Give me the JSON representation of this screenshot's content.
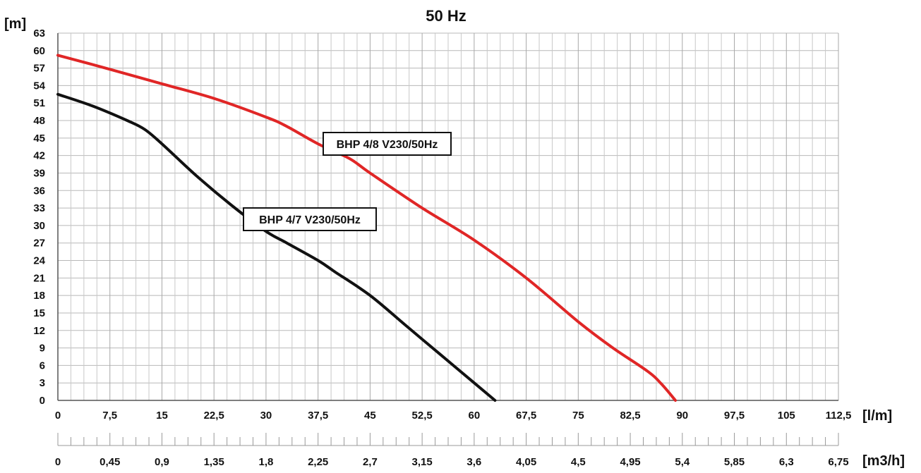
{
  "chart_data": {
    "type": "line",
    "title": "50 Hz",
    "ylabel": "[m]",
    "xlabel": "[l/m]",
    "x2label": "[m3/h]",
    "ylim": [
      0,
      63
    ],
    "xlim": [
      0,
      112.5
    ],
    "x2lim": [
      0,
      6.75
    ],
    "grid": true,
    "y_ticks": [
      "0",
      "3",
      "6",
      "9",
      "12",
      "15",
      "18",
      "21",
      "24",
      "27",
      "30",
      "33",
      "36",
      "39",
      "42",
      "45",
      "48",
      "51",
      "54",
      "57",
      "60",
      "63"
    ],
    "x_ticks": [
      "0",
      "7,5",
      "15",
      "22,5",
      "30",
      "37,5",
      "45",
      "52,5",
      "60",
      "67,5",
      "75",
      "82,5",
      "90",
      "97,5",
      "105",
      "112,5"
    ],
    "x2_ticks": [
      "0",
      "0,45",
      "0,9",
      "1,35",
      "1,8",
      "2,25",
      "2,7",
      "3,15",
      "3,6",
      "4,05",
      "4,5",
      "4,95",
      "5,4",
      "5,85",
      "6,3",
      "6,75"
    ],
    "series": [
      {
        "name": "BHP 4/7 V230/50Hz",
        "color": "#111111",
        "x": [
          0,
          5,
          10,
          12.5,
          15,
          20,
          25,
          30,
          33,
          37.5,
          40,
          45,
          50,
          55,
          60,
          63
        ],
        "y": [
          52.5,
          50.5,
          48,
          46.5,
          44,
          38.5,
          33.5,
          29,
          27,
          24,
          22,
          18,
          13,
          8,
          3,
          0
        ]
      },
      {
        "name": "BHP 4/8 V230/50Hz",
        "color": "#e02626",
        "x": [
          0,
          7.5,
          15,
          22.5,
          30,
          33,
          37.5,
          42,
          45,
          52.5,
          60,
          67.5,
          75,
          80,
          85,
          87,
          89
        ],
        "y": [
          59.2,
          56.8,
          54.3,
          51.8,
          48.6,
          47,
          44,
          41.5,
          39,
          33,
          27.5,
          21,
          13.5,
          9,
          5,
          2.8,
          0
        ]
      }
    ]
  },
  "annotations": {
    "a": "BHP 4/8 V230/50Hz",
    "b": "BHP 4/7 V230/50Hz"
  }
}
